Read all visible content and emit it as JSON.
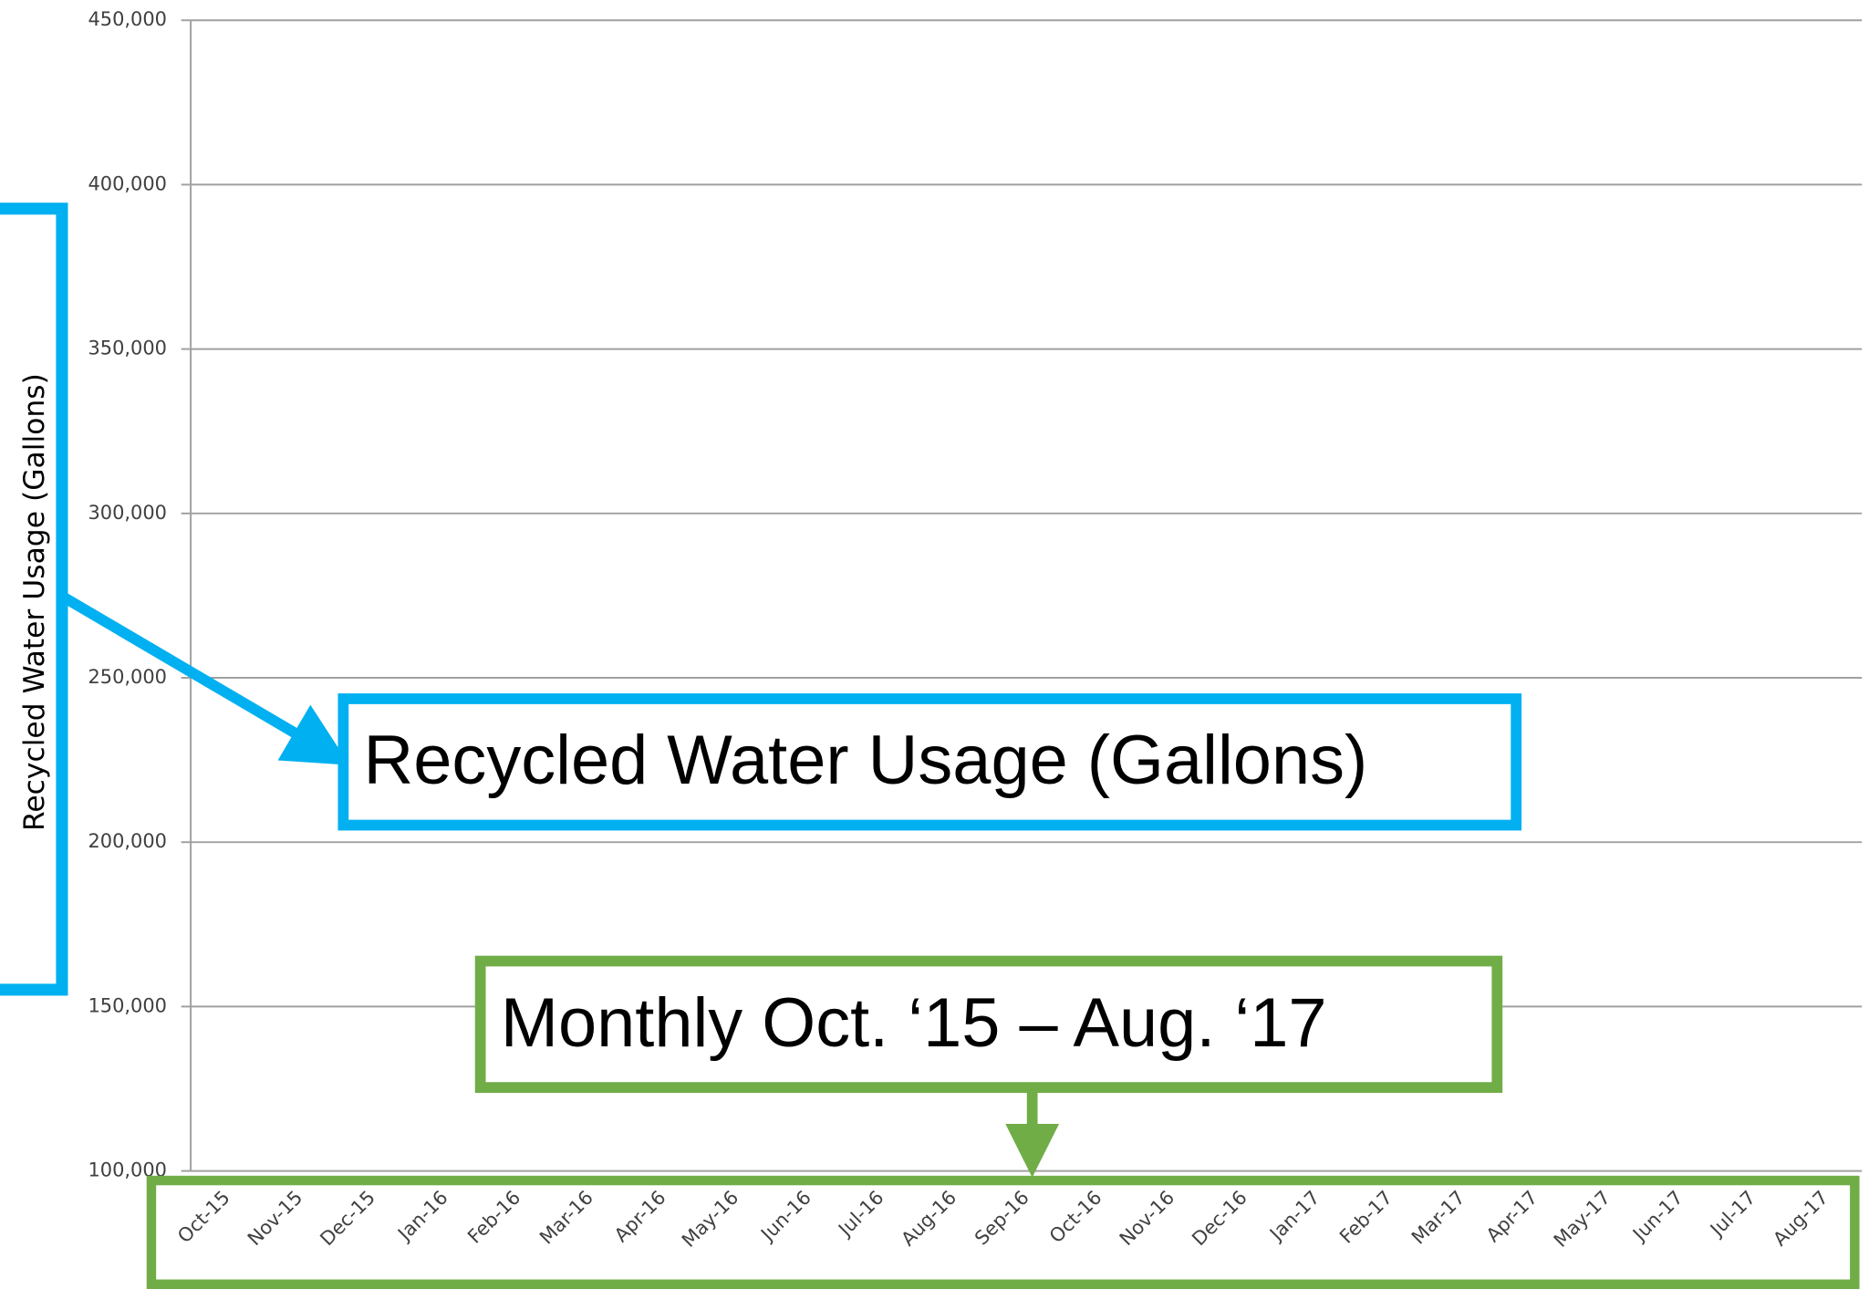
{
  "chart_data": {
    "type": "line",
    "y_label": "Recycled Water Usage (Gallons)",
    "annotations": [
      "Recycled Water Usage (Gallons)",
      "Monthly Oct. ‘15 – Aug. ‘17"
    ],
    "categories": [
      "Oct-15",
      "Nov-15",
      "Dec-15",
      "Jan-16",
      "Feb-16",
      "Mar-16",
      "Apr-16",
      "May-16",
      "Jun-16",
      "Jul-16",
      "Aug-16",
      "Sep-16",
      "Oct-16",
      "Nov-16",
      "Dec-16",
      "Jan-17",
      "Feb-17",
      "Mar-17",
      "Apr-17",
      "May-17",
      "Jun-17",
      "Jul-17",
      "Aug-17"
    ],
    "ylim": [
      100000,
      450000
    ],
    "yticks": [
      {
        "value": 100000,
        "label": "100,000"
      },
      {
        "value": 150000,
        "label": "150,000"
      },
      {
        "value": 200000,
        "label": "200,000"
      },
      {
        "value": 250000,
        "label": "250,000"
      },
      {
        "value": 300000,
        "label": "300,000"
      },
      {
        "value": 350000,
        "label": "350,000"
      },
      {
        "value": 400000,
        "label": "400,000"
      },
      {
        "value": 450000,
        "label": "450,000"
      }
    ],
    "grid": true
  }
}
